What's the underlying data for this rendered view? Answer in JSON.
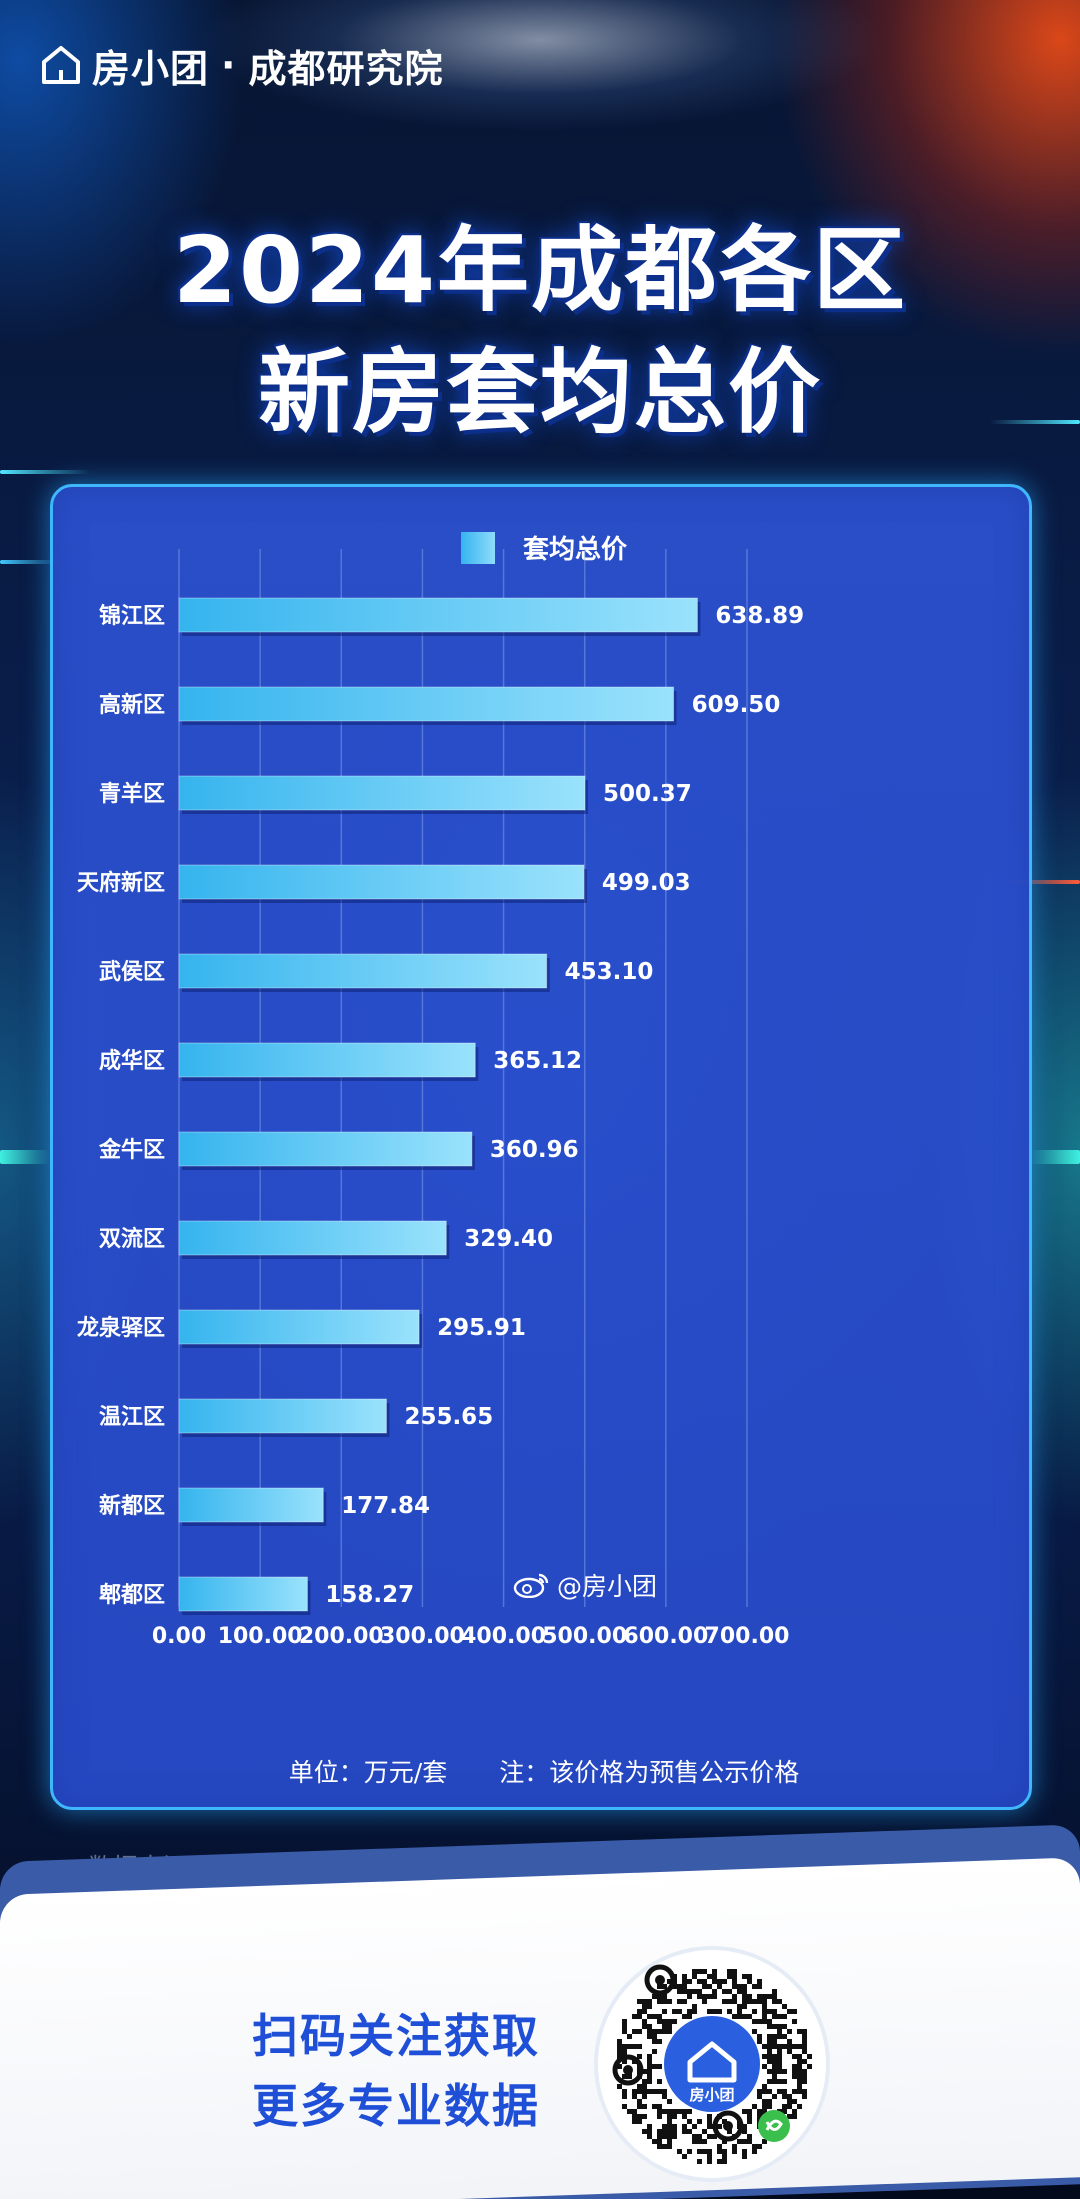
{
  "brand": {
    "name": "房小团",
    "separator": "·",
    "institute": "成都研究院"
  },
  "title": {
    "line1": "2024年成都各区",
    "line2": "新房套均总价"
  },
  "colors": {
    "accent": "#3fb7ff",
    "bar_start": "#35b4ee",
    "bar_end": "#9ae2fc",
    "card_bg": "#2c52d2",
    "cta_text": "#1e4fd6"
  },
  "chart_data": {
    "type": "bar",
    "orientation": "horizontal",
    "legend": [
      "套均总价"
    ],
    "legend_position": "top-center",
    "categories": [
      "锦江区",
      "高新区",
      "青羊区",
      "天府新区",
      "武侯区",
      "成华区",
      "金牛区",
      "双流区",
      "龙泉驿区",
      "温江区",
      "新都区",
      "郫都区"
    ],
    "values": [
      638.89,
      609.5,
      500.37,
      499.03,
      453.1,
      365.12,
      360.96,
      329.4,
      295.91,
      255.65,
      177.84,
      158.27
    ],
    "value_labels": [
      "638.89",
      "609.50",
      "500.37",
      "499.03",
      "453.10",
      "365.12",
      "360.96",
      "329.40",
      "295.91",
      "255.65",
      "177.84",
      "158.27"
    ],
    "xlim": [
      0,
      700
    ],
    "xticks": [
      "0.00",
      "100.00",
      "200.00",
      "300.00",
      "400.00",
      "500.00",
      "600.00",
      "700.00"
    ],
    "grid": true
  },
  "footnote": {
    "unit": "单位：万元/套",
    "note": "注：该价格为预售公示价格"
  },
  "watermark": {
    "text": "@房小团"
  },
  "source": "数据来源：成都住建局官网",
  "cta": {
    "line1": "扫码关注获取",
    "line2": "更多专业数据"
  },
  "qr": {
    "center_label": "房小团"
  }
}
